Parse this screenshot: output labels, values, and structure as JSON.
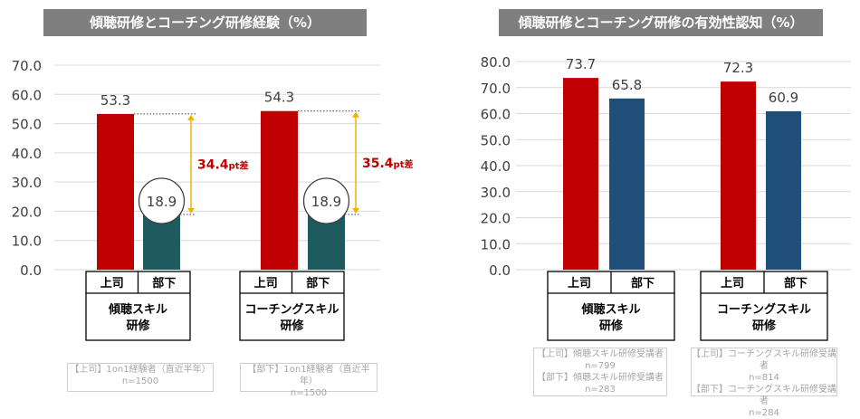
{
  "chart_data": [
    {
      "type": "bar",
      "title": "傾聴研修とコーチング研修経験（%）",
      "categories": [
        "傾聴スキル研修",
        "コーチングスキル研修"
      ],
      "series": [
        {
          "name": "上司",
          "values": [
            53.3,
            54.3
          ]
        },
        {
          "name": "部下",
          "values": [
            18.9,
            18.9
          ]
        }
      ],
      "ylim": [
        0,
        70
      ],
      "yticks": [
        "70.0",
        "60.0",
        "50.0",
        "40.0",
        "30.0",
        "20.0",
        "10.0",
        "0.0"
      ],
      "grid": true,
      "annotations": [
        {
          "category": "傾聴スキル研修",
          "value": "34.4",
          "unit": "pt差"
        },
        {
          "category": "コーチングスキル研修",
          "value": "35.4",
          "unit": "pt差"
        }
      ],
      "notes": [
        [
          "【上司】1on1経験者（直近半年）",
          "n=1500"
        ],
        [
          "【部下】1on1経験者（直近半年）",
          "n=1500"
        ]
      ]
    },
    {
      "type": "bar",
      "title": "傾聴研修とコーチング研修の有効性認知（%）",
      "categories": [
        "傾聴スキル研修",
        "コーチングスキル研修"
      ],
      "series": [
        {
          "name": "上司",
          "values": [
            73.7,
            72.3
          ]
        },
        {
          "name": "部下",
          "values": [
            65.8,
            60.9
          ]
        }
      ],
      "ylim": [
        0,
        80
      ],
      "yticks": [
        "80.0",
        "70.0",
        "60.0",
        "50.0",
        "40.0",
        "30.0",
        "20.0",
        "10.0",
        "0.0"
      ],
      "grid": true,
      "notes": [
        [
          "【上司】傾聴スキル研修受講者",
          "n=799",
          "【部下】傾聴スキル研修受講者",
          "n=283"
        ],
        [
          "【上司】コーチングスキル研修受講者",
          "n=814",
          "【部下】コーチングスキル研修受講者",
          "n=284"
        ]
      ]
    }
  ],
  "colors": {
    "boss": "#c00000",
    "sub_left": "#1f5a5e",
    "sub_right": "#1f4e79",
    "diff": "#c00000",
    "arrow": "#f0b400"
  },
  "category_lines": [
    [
      "傾聴スキル",
      "研修"
    ],
    [
      "コーチングスキル",
      "研修"
    ]
  ]
}
